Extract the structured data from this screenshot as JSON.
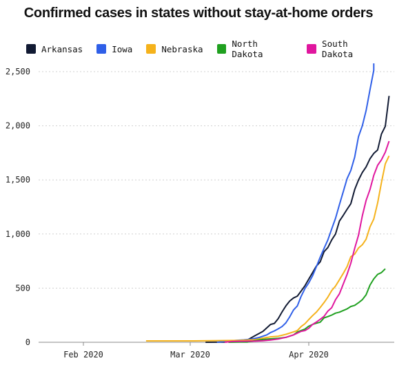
{
  "chart_data": {
    "type": "line",
    "title": "Confirmed cases in states without stay-at-home orders",
    "xlabel": "",
    "ylabel": "",
    "ylim": [
      0,
      2600
    ],
    "yticks": [
      0,
      500,
      1000,
      1500,
      2000,
      2500
    ],
    "ytick_labels": [
      "0",
      "500",
      "1,000",
      "1,500",
      "2,000",
      "2,500"
    ],
    "xticks": [
      "Feb 2020",
      "Mar 2020",
      "Apr 2020"
    ],
    "grid": true,
    "legend_position": "top",
    "series": [
      {
        "name": "Arkansas",
        "color": "#111a33",
        "points": [
          [
            "2020-03-05",
            0
          ],
          [
            "2020-03-10",
            2
          ],
          [
            "2020-03-12",
            6
          ],
          [
            "2020-03-14",
            16
          ],
          [
            "2020-03-16",
            22
          ],
          [
            "2020-03-18",
            62
          ],
          [
            "2020-03-20",
            100
          ],
          [
            "2020-03-22",
            165
          ],
          [
            "2020-03-23",
            174
          ],
          [
            "2020-03-24",
            218
          ],
          [
            "2020-03-25",
            280
          ],
          [
            "2020-03-26",
            335
          ],
          [
            "2020-03-27",
            381
          ],
          [
            "2020-03-28",
            409
          ],
          [
            "2020-03-29",
            426
          ],
          [
            "2020-03-30",
            473
          ],
          [
            "2020-03-31",
            523
          ],
          [
            "2020-04-01",
            584
          ],
          [
            "2020-04-02",
            643
          ],
          [
            "2020-04-03",
            704
          ],
          [
            "2020-04-04",
            743
          ],
          [
            "2020-04-05",
            837
          ],
          [
            "2020-04-06",
            875
          ],
          [
            "2020-04-07",
            946
          ],
          [
            "2020-04-08",
            1000
          ],
          [
            "2020-04-09",
            1119
          ],
          [
            "2020-04-10",
            1171
          ],
          [
            "2020-04-11",
            1228
          ],
          [
            "2020-04-12",
            1280
          ],
          [
            "2020-04-13",
            1410
          ],
          [
            "2020-04-14",
            1498
          ],
          [
            "2020-04-15",
            1569
          ],
          [
            "2020-04-16",
            1620
          ],
          [
            "2020-04-17",
            1695
          ],
          [
            "2020-04-18",
            1744
          ],
          [
            "2020-04-19",
            1777
          ],
          [
            "2020-04-20",
            1923
          ],
          [
            "2020-04-21",
            1995
          ],
          [
            "2020-04-22",
            2276
          ]
        ]
      },
      {
        "name": "Iowa",
        "color": "#2f5fe8",
        "points": [
          [
            "2020-03-08",
            0
          ],
          [
            "2020-03-10",
            8
          ],
          [
            "2020-03-13",
            17
          ],
          [
            "2020-03-15",
            22
          ],
          [
            "2020-03-17",
            29
          ],
          [
            "2020-03-19",
            44
          ],
          [
            "2020-03-21",
            68
          ],
          [
            "2020-03-22",
            90
          ],
          [
            "2020-03-23",
            105
          ],
          [
            "2020-03-24",
            124
          ],
          [
            "2020-03-25",
            145
          ],
          [
            "2020-03-26",
            179
          ],
          [
            "2020-03-27",
            235
          ],
          [
            "2020-03-28",
            298
          ],
          [
            "2020-03-29",
            336
          ],
          [
            "2020-03-30",
            424
          ],
          [
            "2020-03-31",
            497
          ],
          [
            "2020-04-01",
            549
          ],
          [
            "2020-04-02",
            614
          ],
          [
            "2020-04-03",
            699
          ],
          [
            "2020-04-04",
            786
          ],
          [
            "2020-04-05",
            868
          ],
          [
            "2020-04-06",
            946
          ],
          [
            "2020-04-07",
            1048
          ],
          [
            "2020-04-08",
            1145
          ],
          [
            "2020-04-09",
            1270
          ],
          [
            "2020-04-10",
            1388
          ],
          [
            "2020-04-11",
            1510
          ],
          [
            "2020-04-12",
            1587
          ],
          [
            "2020-04-13",
            1710
          ],
          [
            "2020-04-14",
            1899
          ],
          [
            "2020-04-15",
            2000
          ],
          [
            "2020-04-16",
            2141
          ],
          [
            "2020-04-17",
            2332
          ],
          [
            "2020-04-18",
            2513
          ],
          [
            "2020-04-18",
            2580
          ]
        ]
      },
      {
        "name": "Nebraska",
        "color": "#f5b21b",
        "points": [
          [
            "2020-02-18",
            13
          ],
          [
            "2020-02-25",
            13
          ],
          [
            "2020-03-02",
            13
          ],
          [
            "2020-03-06",
            14
          ],
          [
            "2020-03-10",
            16
          ],
          [
            "2020-03-14",
            18
          ],
          [
            "2020-03-16",
            21
          ],
          [
            "2020-03-18",
            24
          ],
          [
            "2020-03-20",
            38
          ],
          [
            "2020-03-22",
            50
          ],
          [
            "2020-03-24",
            56
          ],
          [
            "2020-03-26",
            73
          ],
          [
            "2020-03-28",
            96
          ],
          [
            "2020-03-29",
            108
          ],
          [
            "2020-03-30",
            145
          ],
          [
            "2020-03-31",
            172
          ],
          [
            "2020-04-01",
            210
          ],
          [
            "2020-04-02",
            246
          ],
          [
            "2020-04-03",
            279
          ],
          [
            "2020-04-04",
            321
          ],
          [
            "2020-04-05",
            367
          ],
          [
            "2020-04-06",
            417
          ],
          [
            "2020-04-07",
            478
          ],
          [
            "2020-04-08",
            519
          ],
          [
            "2020-04-09",
            577
          ],
          [
            "2020-04-10",
            635
          ],
          [
            "2020-04-11",
            698
          ],
          [
            "2020-04-12",
            791
          ],
          [
            "2020-04-13",
            814
          ],
          [
            "2020-04-14",
            871
          ],
          [
            "2020-04-15",
            901
          ],
          [
            "2020-04-16",
            952
          ],
          [
            "2020-04-17",
            1066
          ],
          [
            "2020-04-18",
            1138
          ],
          [
            "2020-04-19",
            1287
          ],
          [
            "2020-04-20",
            1474
          ],
          [
            "2020-04-21",
            1648
          ],
          [
            "2020-04-22",
            1722
          ]
        ]
      },
      {
        "name": "North Dakota",
        "color": "#1fa01f",
        "points": [
          [
            "2020-03-11",
            0
          ],
          [
            "2020-03-14",
            1
          ],
          [
            "2020-03-16",
            2
          ],
          [
            "2020-03-18",
            15
          ],
          [
            "2020-03-20",
            26
          ],
          [
            "2020-03-22",
            32
          ],
          [
            "2020-03-24",
            36
          ],
          [
            "2020-03-26",
            45
          ],
          [
            "2020-03-28",
            68
          ],
          [
            "2020-03-29",
            94
          ],
          [
            "2020-03-30",
            109
          ],
          [
            "2020-03-31",
            122
          ],
          [
            "2020-04-01",
            149
          ],
          [
            "2020-04-02",
            165
          ],
          [
            "2020-04-03",
            176
          ],
          [
            "2020-04-04",
            186
          ],
          [
            "2020-04-05",
            225
          ],
          [
            "2020-04-06",
            237
          ],
          [
            "2020-04-07",
            251
          ],
          [
            "2020-04-08",
            269
          ],
          [
            "2020-04-09",
            278
          ],
          [
            "2020-04-10",
            293
          ],
          [
            "2020-04-11",
            308
          ],
          [
            "2020-04-12",
            331
          ],
          [
            "2020-04-13",
            341
          ],
          [
            "2020-04-14",
            365
          ],
          [
            "2020-04-15",
            393
          ],
          [
            "2020-04-16",
            439
          ],
          [
            "2020-04-17",
            528
          ],
          [
            "2020-04-18",
            585
          ],
          [
            "2020-04-19",
            627
          ],
          [
            "2020-04-20",
            644
          ],
          [
            "2020-04-21",
            679
          ]
        ]
      },
      {
        "name": "South Dakota",
        "color": "#e0169e",
        "points": [
          [
            "2020-03-10",
            0
          ],
          [
            "2020-03-12",
            8
          ],
          [
            "2020-03-14",
            9
          ],
          [
            "2020-03-16",
            10
          ],
          [
            "2020-03-18",
            11
          ],
          [
            "2020-03-20",
            14
          ],
          [
            "2020-03-22",
            21
          ],
          [
            "2020-03-24",
            30
          ],
          [
            "2020-03-26",
            46
          ],
          [
            "2020-03-28",
            68
          ],
          [
            "2020-03-30",
            101
          ],
          [
            "2020-03-31",
            108
          ],
          [
            "2020-04-01",
            129
          ],
          [
            "2020-04-02",
            165
          ],
          [
            "2020-04-03",
            187
          ],
          [
            "2020-04-04",
            212
          ],
          [
            "2020-04-05",
            240
          ],
          [
            "2020-04-06",
            288
          ],
          [
            "2020-04-07",
            320
          ],
          [
            "2020-04-08",
            393
          ],
          [
            "2020-04-09",
            447
          ],
          [
            "2020-04-10",
            536
          ],
          [
            "2020-04-11",
            626
          ],
          [
            "2020-04-12",
            730
          ],
          [
            "2020-04-13",
            868
          ],
          [
            "2020-04-14",
            988
          ],
          [
            "2020-04-15",
            1168
          ],
          [
            "2020-04-16",
            1311
          ],
          [
            "2020-04-17",
            1411
          ],
          [
            "2020-04-18",
            1542
          ],
          [
            "2020-04-19",
            1635
          ],
          [
            "2020-04-20",
            1685
          ],
          [
            "2020-04-21",
            1755
          ],
          [
            "2020-04-22",
            1858
          ]
        ]
      }
    ]
  }
}
